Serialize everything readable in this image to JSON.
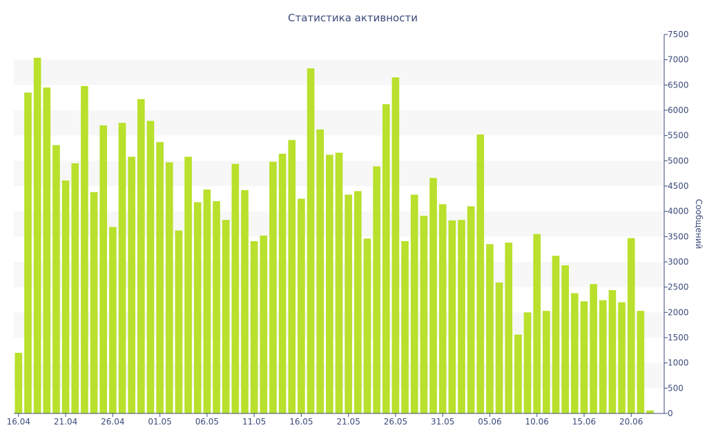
{
  "chart_data": {
    "type": "bar",
    "title": "Статистика активности",
    "ylabel": "Сообщений",
    "xlabel": "",
    "ylim": [
      0,
      7500
    ],
    "y_ticks": [
      0,
      500,
      1000,
      1500,
      2000,
      2500,
      3000,
      3500,
      4000,
      4500,
      5000,
      5500,
      6000,
      6500,
      7000,
      7500
    ],
    "y_axis_side": "right",
    "x_tick_labels": [
      "16.04",
      "21.04",
      "26.04",
      "01.05",
      "06.05",
      "11.05",
      "16.05",
      "21.05",
      "26.05",
      "31.05",
      "05.06",
      "10.06",
      "15.06",
      "20.06"
    ],
    "x_tick_step": 5,
    "bar_color": "#b8e02c",
    "grid_band_color": "#f7f7f7",
    "text_color": "#3b4a7a",
    "values": [
      1200,
      6350,
      7040,
      6450,
      5310,
      4610,
      4950,
      6480,
      4380,
      5700,
      3690,
      5750,
      5080,
      6220,
      5790,
      5370,
      4970,
      3620,
      5080,
      4180,
      4430,
      4200,
      3830,
      4940,
      4420,
      3410,
      3520,
      4980,
      5140,
      5410,
      4250,
      6830,
      5620,
      5120,
      5160,
      4330,
      4400,
      3460,
      4890,
      6120,
      6650,
      3410,
      4330,
      3910,
      4660,
      4140,
      3820,
      3830,
      4100,
      5520,
      3350,
      2590,
      3380,
      1560,
      2000,
      3550,
      2030,
      3120,
      2930,
      2380,
      2220,
      2560,
      2240,
      2440,
      2200,
      3470,
      2030,
      60,
      0
    ]
  }
}
